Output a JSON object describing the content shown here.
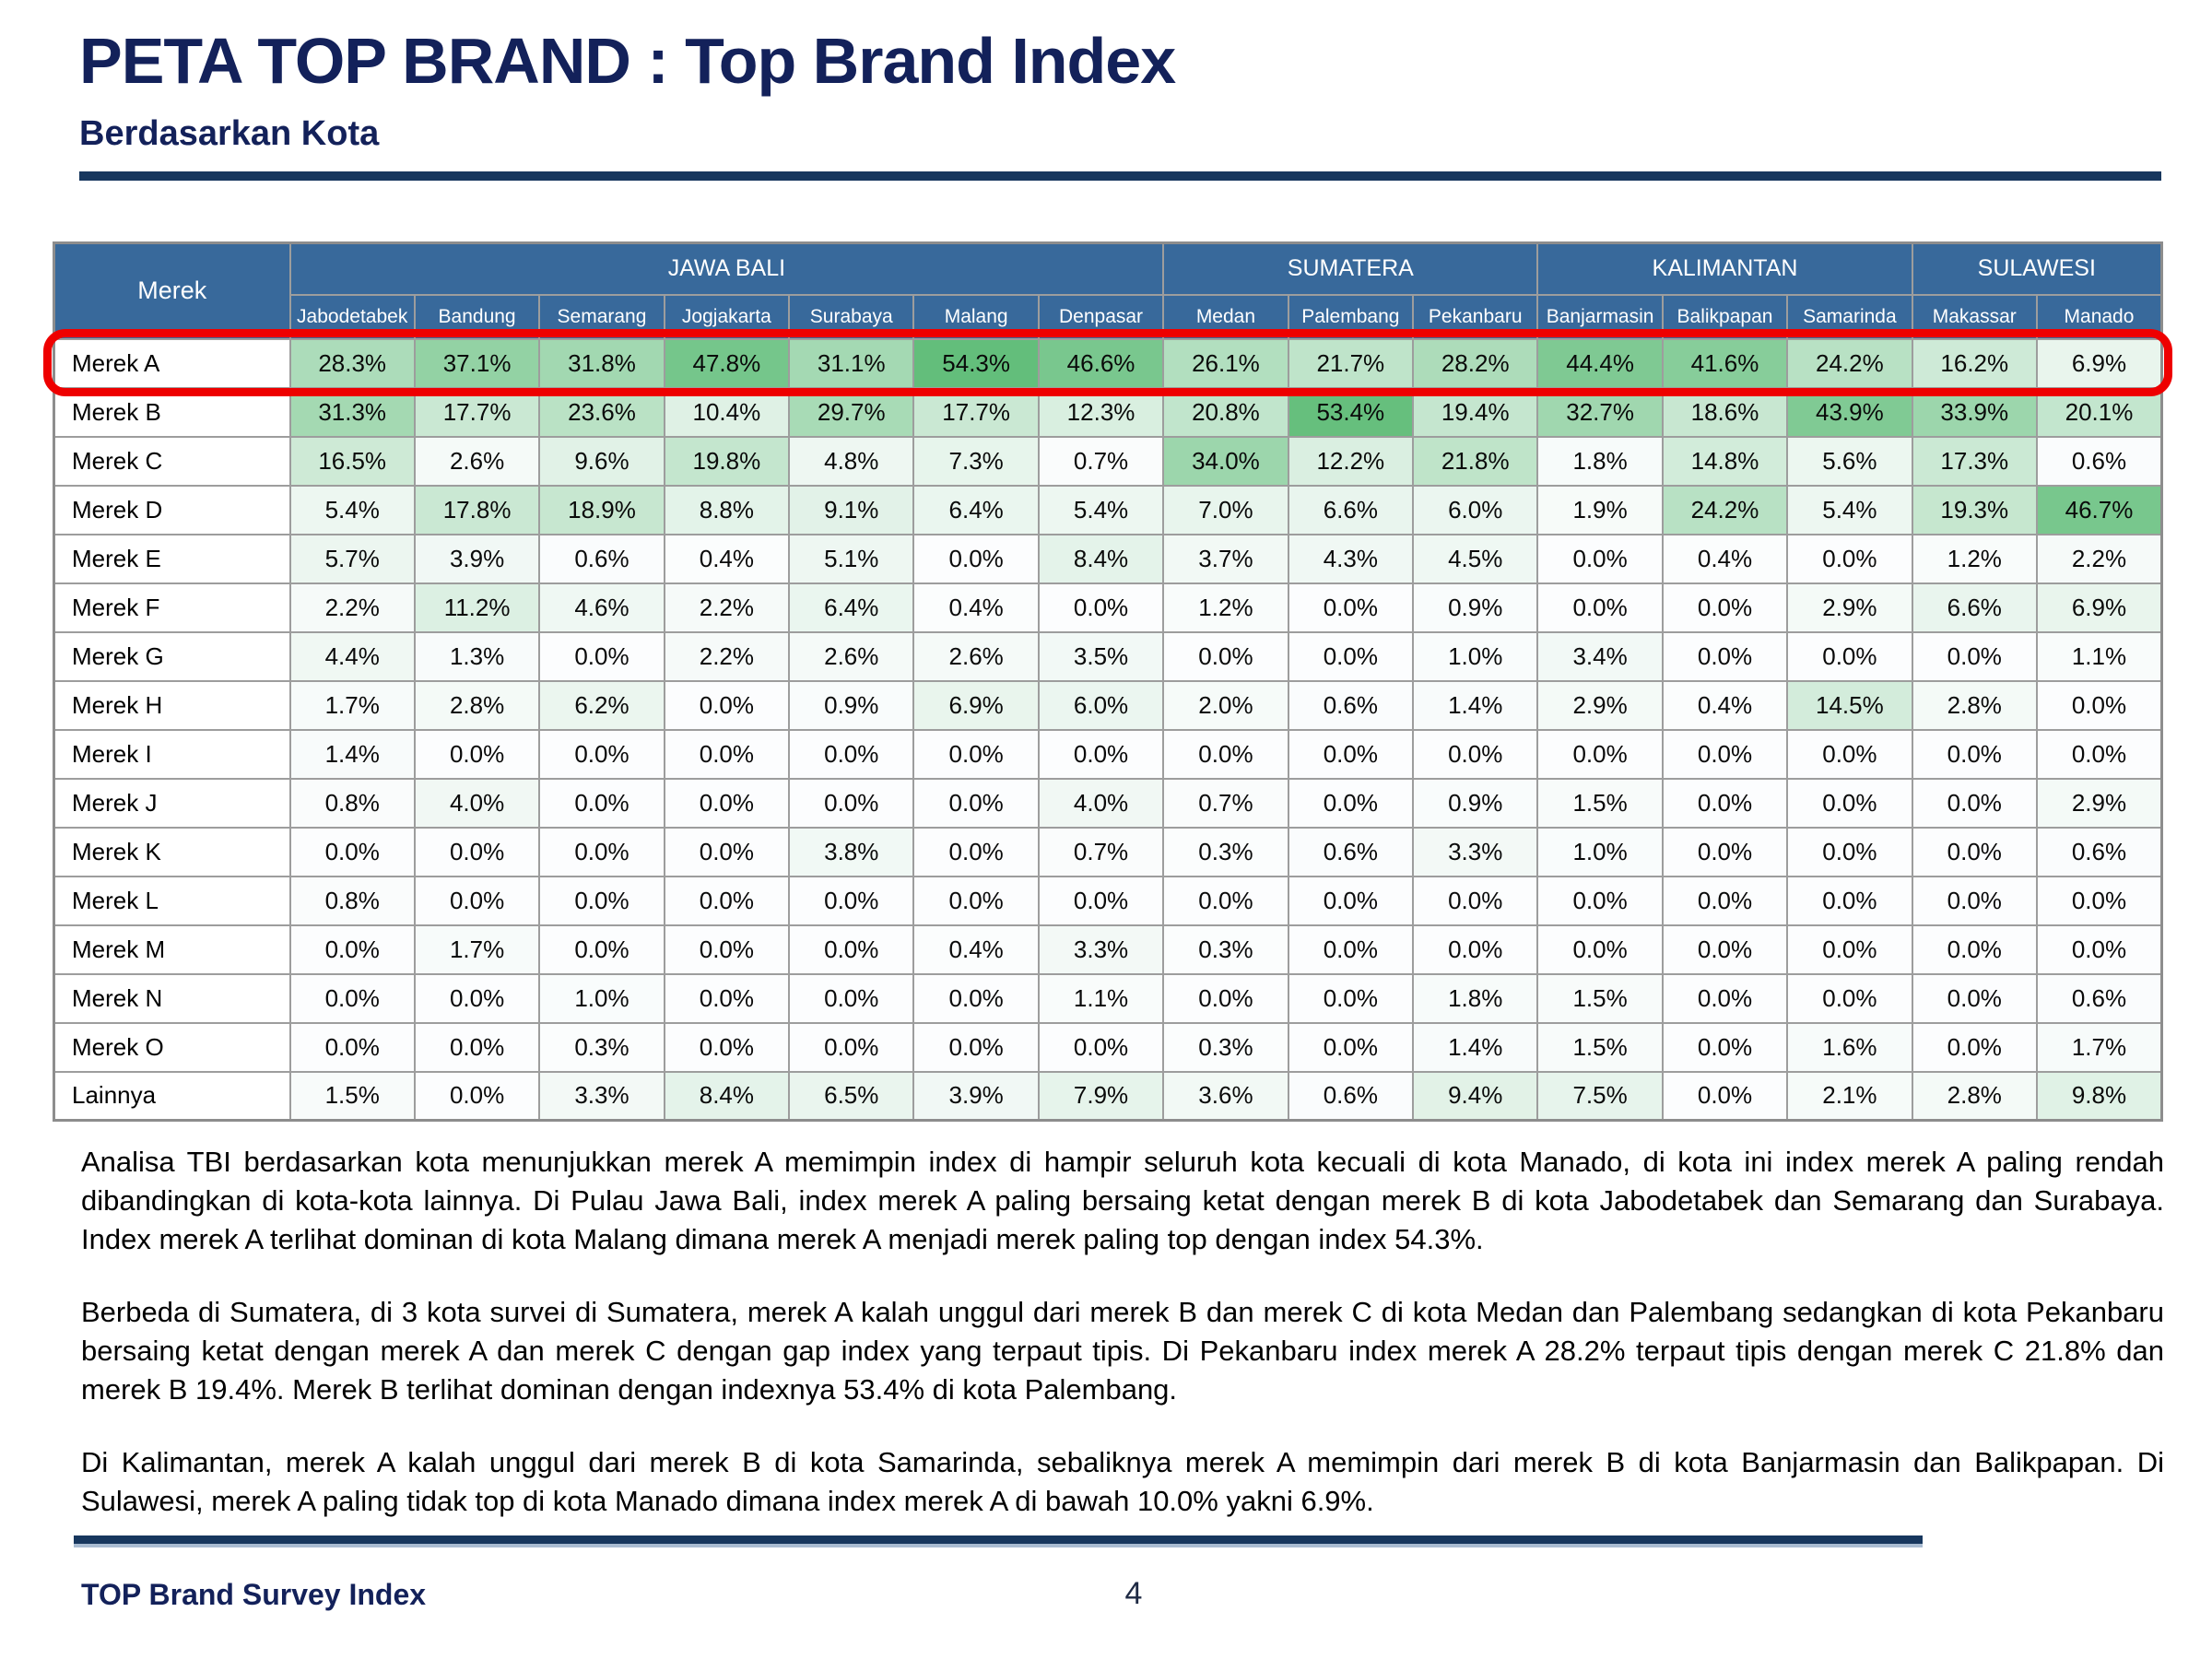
{
  "header": {
    "title": "PETA TOP BRAND : Top Brand Index",
    "subtitle": "Berdasarkan Kota"
  },
  "table": {
    "merek_header": "Merek",
    "regions": [
      {
        "label": "JAWA BALI",
        "cities": [
          "Jabodetabek",
          "Bandung",
          "Semarang",
          "Jogjakarta",
          "Surabaya",
          "Malang",
          "Denpasar"
        ]
      },
      {
        "label": "SUMATERA",
        "cities": [
          "Medan",
          "Palembang",
          "Pekanbaru"
        ]
      },
      {
        "label": "KALIMANTAN",
        "cities": [
          "Banjarmasin",
          "Balikpapan",
          "Samarinda"
        ]
      },
      {
        "label": "SULAWESI",
        "cities": [
          "Makassar",
          "Manado"
        ]
      }
    ],
    "highlight_row": 0,
    "rows": [
      {
        "label": "Merek A",
        "values": [
          "28.3%",
          "37.1%",
          "31.8%",
          "47.8%",
          "31.1%",
          "54.3%",
          "46.6%",
          "26.1%",
          "21.7%",
          "28.2%",
          "44.4%",
          "41.6%",
          "24.2%",
          "16.2%",
          "6.9%"
        ]
      },
      {
        "label": "Merek B",
        "values": [
          "31.3%",
          "17.7%",
          "23.6%",
          "10.4%",
          "29.7%",
          "17.7%",
          "12.3%",
          "20.8%",
          "53.4%",
          "19.4%",
          "32.7%",
          "18.6%",
          "43.9%",
          "33.9%",
          "20.1%"
        ]
      },
      {
        "label": "Merek C",
        "values": [
          "16.5%",
          "2.6%",
          "9.6%",
          "19.8%",
          "4.8%",
          "7.3%",
          "0.7%",
          "34.0%",
          "12.2%",
          "21.8%",
          "1.8%",
          "14.8%",
          "5.6%",
          "17.3%",
          "0.6%"
        ]
      },
      {
        "label": "Merek D",
        "values": [
          "5.4%",
          "17.8%",
          "18.9%",
          "8.8%",
          "9.1%",
          "6.4%",
          "5.4%",
          "7.0%",
          "6.6%",
          "6.0%",
          "1.9%",
          "24.2%",
          "5.4%",
          "19.3%",
          "46.7%"
        ]
      },
      {
        "label": "Merek E",
        "values": [
          "5.7%",
          "3.9%",
          "0.6%",
          "0.4%",
          "5.1%",
          "0.0%",
          "8.4%",
          "3.7%",
          "4.3%",
          "4.5%",
          "0.0%",
          "0.4%",
          "0.0%",
          "1.2%",
          "2.2%"
        ]
      },
      {
        "label": "Merek F",
        "values": [
          "2.2%",
          "11.2%",
          "4.6%",
          "2.2%",
          "6.4%",
          "0.4%",
          "0.0%",
          "1.2%",
          "0.0%",
          "0.9%",
          "0.0%",
          "0.0%",
          "2.9%",
          "6.6%",
          "6.9%"
        ]
      },
      {
        "label": "Merek G",
        "values": [
          "4.4%",
          "1.3%",
          "0.0%",
          "2.2%",
          "2.6%",
          "2.6%",
          "3.5%",
          "0.0%",
          "0.0%",
          "1.0%",
          "3.4%",
          "0.0%",
          "0.0%",
          "0.0%",
          "1.1%"
        ]
      },
      {
        "label": "Merek H",
        "values": [
          "1.7%",
          "2.8%",
          "6.2%",
          "0.0%",
          "0.9%",
          "6.9%",
          "6.0%",
          "2.0%",
          "0.6%",
          "1.4%",
          "2.9%",
          "0.4%",
          "14.5%",
          "2.8%",
          "0.0%"
        ]
      },
      {
        "label": "Merek I",
        "values": [
          "1.4%",
          "0.0%",
          "0.0%",
          "0.0%",
          "0.0%",
          "0.0%",
          "0.0%",
          "0.0%",
          "0.0%",
          "0.0%",
          "0.0%",
          "0.0%",
          "0.0%",
          "0.0%",
          "0.0%"
        ]
      },
      {
        "label": "Merek J",
        "values": [
          "0.8%",
          "4.0%",
          "0.0%",
          "0.0%",
          "0.0%",
          "0.0%",
          "4.0%",
          "0.7%",
          "0.0%",
          "0.9%",
          "1.5%",
          "0.0%",
          "0.0%",
          "0.0%",
          "2.9%"
        ]
      },
      {
        "label": "Merek K",
        "values": [
          "0.0%",
          "0.0%",
          "0.0%",
          "0.0%",
          "3.8%",
          "0.0%",
          "0.7%",
          "0.3%",
          "0.6%",
          "3.3%",
          "1.0%",
          "0.0%",
          "0.0%",
          "0.0%",
          "0.6%"
        ]
      },
      {
        "label": "Merek L",
        "values": [
          "0.8%",
          "0.0%",
          "0.0%",
          "0.0%",
          "0.0%",
          "0.0%",
          "0.0%",
          "0.0%",
          "0.0%",
          "0.0%",
          "0.0%",
          "0.0%",
          "0.0%",
          "0.0%",
          "0.0%"
        ]
      },
      {
        "label": "Merek M",
        "values": [
          "0.0%",
          "1.7%",
          "0.0%",
          "0.0%",
          "0.0%",
          "0.4%",
          "3.3%",
          "0.3%",
          "0.0%",
          "0.0%",
          "0.0%",
          "0.0%",
          "0.0%",
          "0.0%",
          "0.0%"
        ]
      },
      {
        "label": "Merek N",
        "values": [
          "0.0%",
          "0.0%",
          "1.0%",
          "0.0%",
          "0.0%",
          "0.0%",
          "1.1%",
          "0.0%",
          "0.0%",
          "1.8%",
          "1.5%",
          "0.0%",
          "0.0%",
          "0.0%",
          "0.6%"
        ]
      },
      {
        "label": "Merek O",
        "values": [
          "0.0%",
          "0.0%",
          "0.3%",
          "0.0%",
          "0.0%",
          "0.0%",
          "0.0%",
          "0.3%",
          "0.0%",
          "1.4%",
          "1.5%",
          "0.0%",
          "1.6%",
          "0.0%",
          "1.7%"
        ]
      },
      {
        "label": "Lainnya",
        "values": [
          "1.5%",
          "0.0%",
          "3.3%",
          "8.4%",
          "6.5%",
          "3.9%",
          "7.9%",
          "3.6%",
          "0.6%",
          "9.4%",
          "7.5%",
          "0.0%",
          "2.1%",
          "2.8%",
          "9.8%"
        ]
      }
    ]
  },
  "analysis": {
    "paragraphs": [
      "Analisa TBI berdasarkan kota menunjukkan merek A memimpin index di hampir seluruh kota kecuali di kota Manado, di kota ini index merek A paling rendah dibandingkan di kota-kota lainnya. Di Pulau Jawa Bali, index merek A paling bersaing ketat dengan merek B di kota Jabodetabek dan Semarang dan Surabaya. Index merek A terlihat dominan di kota Malang dimana merek A menjadi merek paling top dengan index 54.3%.",
      "Berbeda di Sumatera, di 3 kota survei di Sumatera, merek A kalah unggul dari merek B dan merek C di kota Medan dan Palembang sedangkan di kota Pekanbaru bersaing ketat dengan merek A dan merek C dengan gap index yang terpaut tipis. Di Pekanbaru index merek A 28.2% terpaut tipis dengan merek C 21.8% dan merek B 19.4%. Merek B terlihat dominan dengan indexnya 53.4% di kota Palembang.",
      "Di Kalimantan, merek A kalah unggul dari merek B di kota Samarinda, sebaliknya merek A memimpin dari merek B di kota Banjarmasin dan Balikpapan. Di Sulawesi, merek A paling tidak top di kota Manado dimana index merek A di bawah 10.0% yakni 6.9%."
    ]
  },
  "footer": {
    "label": "TOP Brand Survey Index",
    "page_number": "4"
  },
  "colors": {
    "title_navy": "#13215a",
    "navy": "#17375e",
    "header_blue": "#38699b",
    "highlight_red": "#ee0000",
    "heat_white": "#fcfdfe",
    "heat_green": "#63be7b"
  }
}
